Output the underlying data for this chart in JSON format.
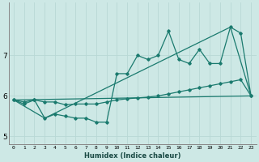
{
  "xlabel": "Humidex (Indice chaleur)",
  "ylabel": "",
  "background_color": "#cde8e5",
  "grid_color": "#b8d8d5",
  "line_color": "#1a7a6e",
  "xlim": [
    -0.5,
    23.5
  ],
  "ylim": [
    4.8,
    8.3
  ],
  "yticks": [
    5,
    6,
    7
  ],
  "xticks": [
    0,
    1,
    2,
    3,
    4,
    5,
    6,
    7,
    8,
    9,
    10,
    11,
    12,
    13,
    14,
    15,
    16,
    17,
    18,
    19,
    20,
    21,
    22,
    23
  ],
  "series1_x": [
    0,
    1,
    2,
    3,
    4,
    5,
    6,
    7,
    8,
    9,
    10,
    11,
    12,
    13,
    14,
    15,
    16,
    17,
    18,
    19,
    20,
    21,
    22,
    23
  ],
  "series1_y": [
    5.9,
    5.8,
    5.9,
    5.45,
    5.55,
    5.5,
    5.45,
    5.45,
    5.35,
    5.35,
    6.55,
    6.55,
    7.0,
    6.9,
    7.0,
    7.6,
    6.9,
    6.8,
    7.15,
    6.8,
    6.8,
    7.7,
    7.55,
    6.0
  ],
  "series2_x": [
    0,
    1,
    2,
    3,
    4,
    5,
    6,
    7,
    8,
    9,
    10,
    11,
    12,
    13,
    14,
    15,
    16,
    17,
    18,
    19,
    20,
    21,
    22,
    23
  ],
  "series2_y": [
    5.9,
    5.85,
    5.9,
    5.85,
    5.85,
    5.78,
    5.8,
    5.8,
    5.8,
    5.85,
    5.9,
    5.93,
    5.95,
    5.97,
    6.0,
    6.05,
    6.1,
    6.15,
    6.2,
    6.25,
    6.3,
    6.35,
    6.4,
    6.0
  ],
  "series3_x": [
    0,
    3,
    21,
    23
  ],
  "series3_y": [
    5.9,
    5.45,
    7.7,
    6.0
  ],
  "series4_x": [
    0,
    23
  ],
  "series4_y": [
    5.9,
    6.0
  ]
}
